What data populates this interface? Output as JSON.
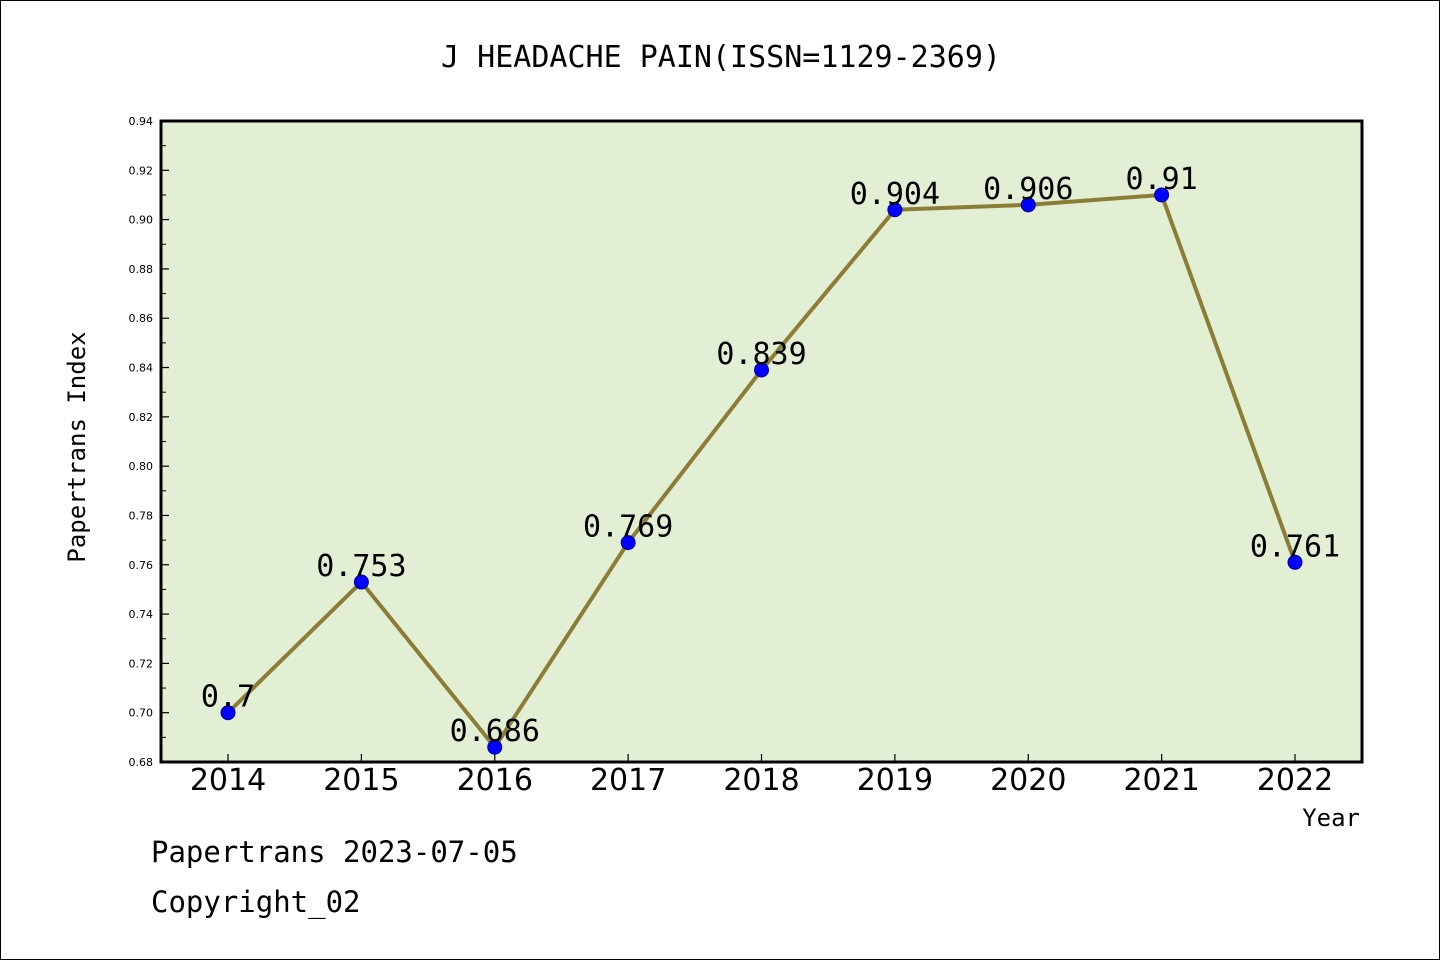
{
  "chart_data": {
    "type": "line",
    "title": "J HEADACHE PAIN(ISSN=1129-2369)",
    "xlabel": "Year",
    "ylabel": "Papertrans Index",
    "categories": [
      "2014",
      "2015",
      "2016",
      "2017",
      "2018",
      "2019",
      "2020",
      "2021",
      "2022"
    ],
    "series": [
      {
        "values": [
          0.7,
          0.753,
          0.686,
          0.769,
          0.839,
          0.904,
          0.906,
          0.91,
          0.761
        ],
        "labels": [
          "0.7",
          "0.753",
          "0.686",
          "0.769",
          "0.839",
          "0.904",
          "0.906",
          "0.91",
          "0.761"
        ]
      }
    ],
    "ylim": [
      0.68,
      0.94
    ],
    "yticks": [
      "0.68",
      "0.70",
      "0.72",
      "0.74",
      "0.76",
      "0.78",
      "0.80",
      "0.82",
      "0.84",
      "0.86",
      "0.88",
      "0.90",
      "0.92",
      "0.94"
    ],
    "grid": false,
    "colors": {
      "plot_background": "#e2efd5",
      "line": "#8b7d36",
      "marker": "#0000ff",
      "marker_edge": "#00008b"
    }
  },
  "footer": {
    "line1": "Papertrans 2023-07-05",
    "line2": "Copyright_02"
  }
}
